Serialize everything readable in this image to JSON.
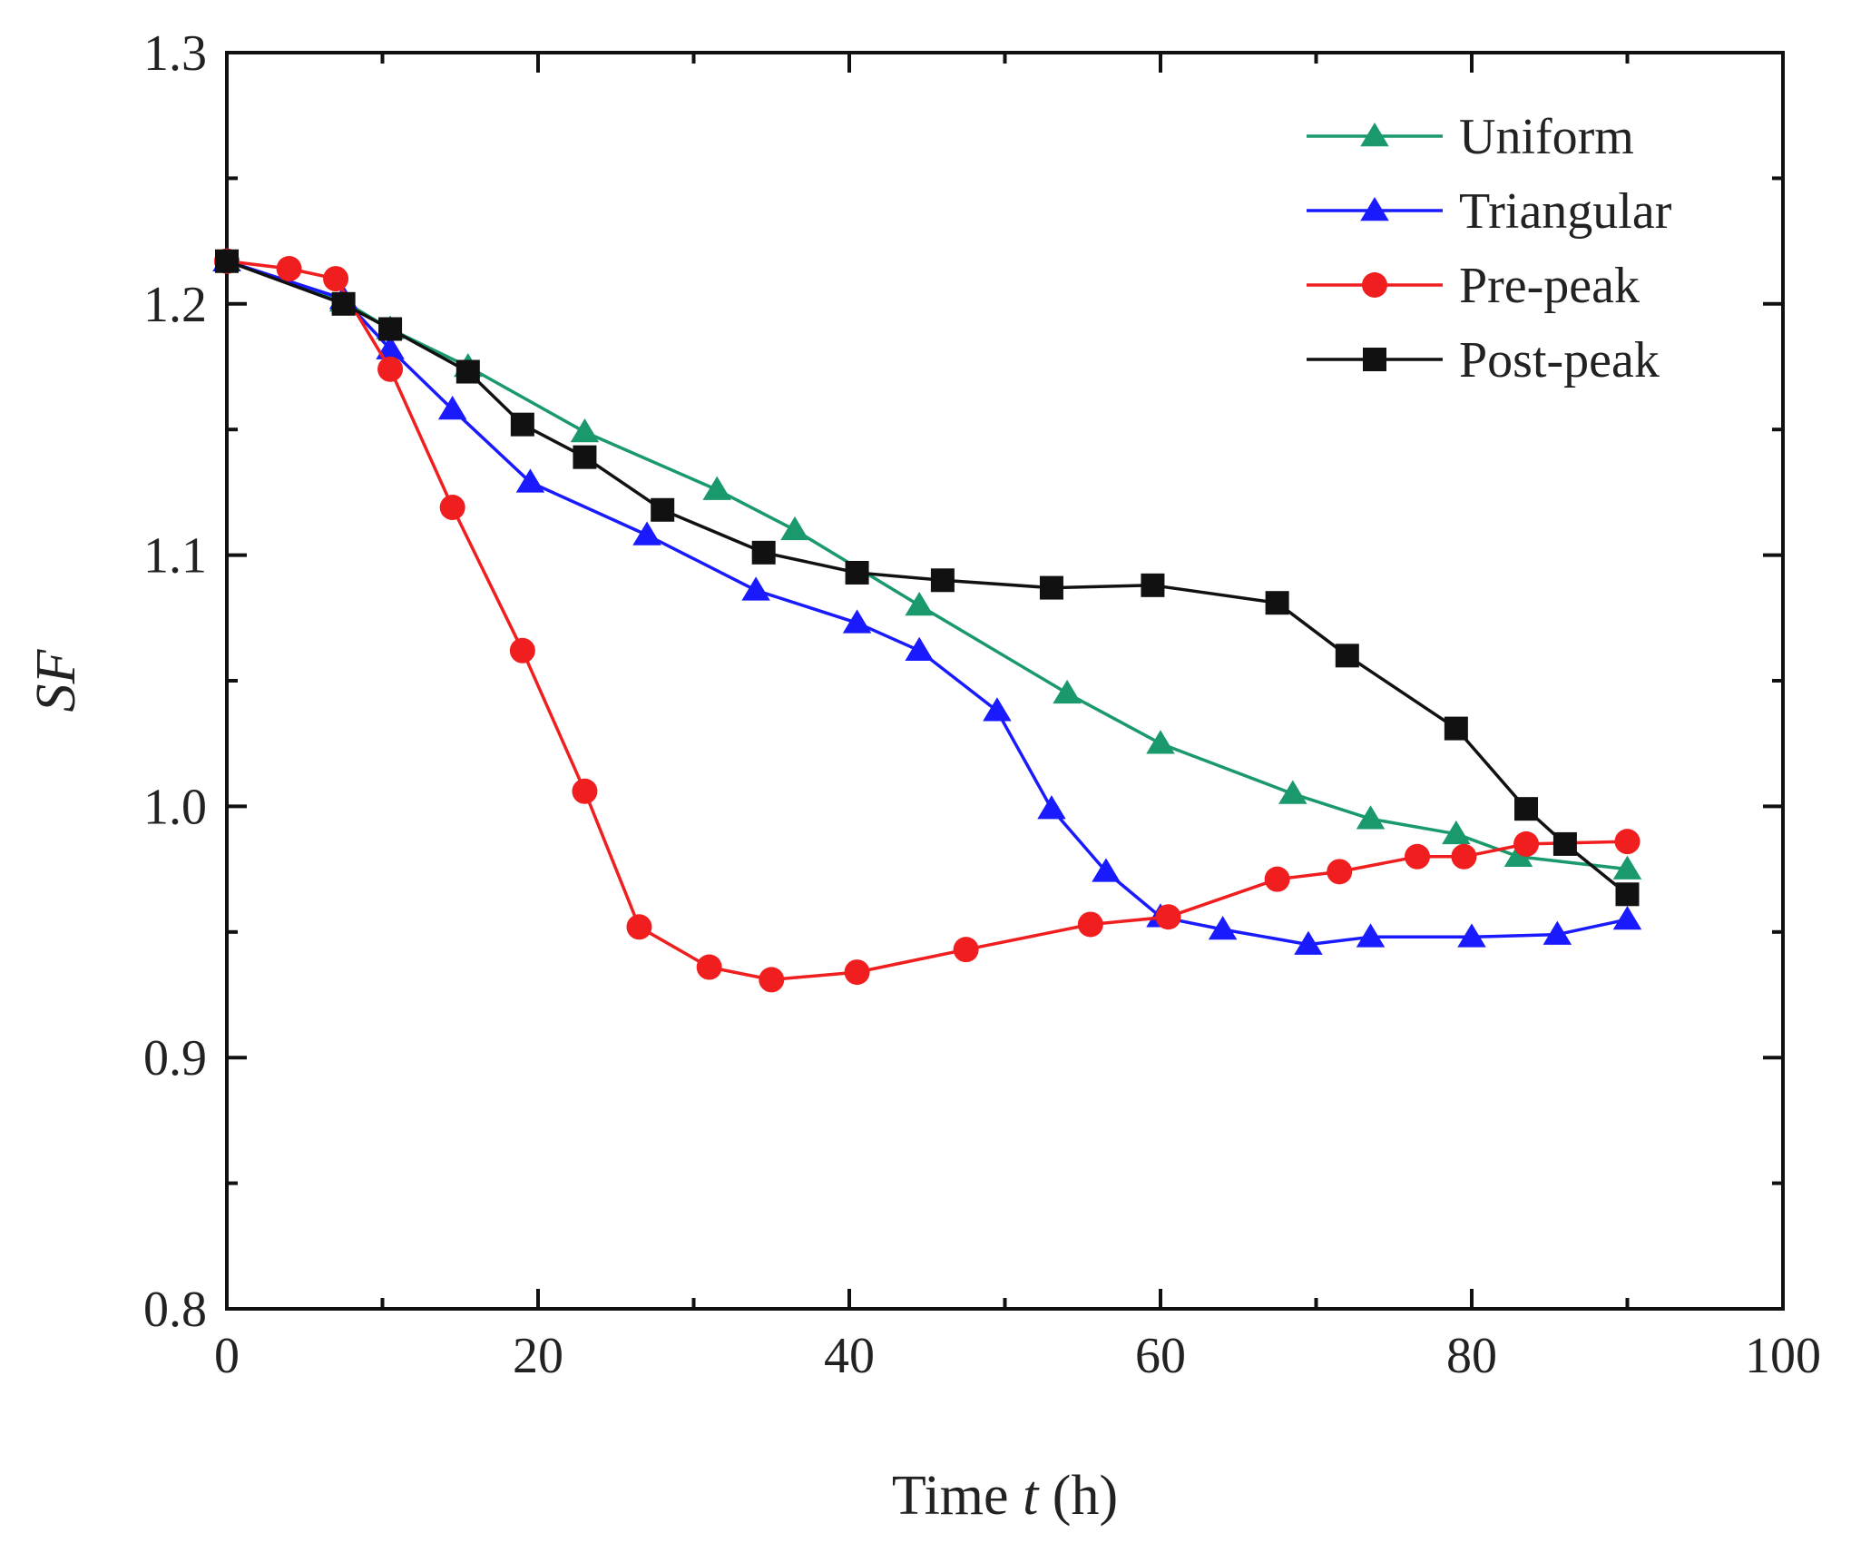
{
  "chart_data": {
    "type": "line",
    "title": "",
    "xlabel": "Time",
    "xlabel_var": "t",
    "xlabel_unit": "(h)",
    "ylabel": "SF",
    "xlim": [
      0,
      100
    ],
    "ylim": [
      0.8,
      1.3
    ],
    "x_major_ticks": [
      0,
      20,
      40,
      60,
      80,
      100
    ],
    "x_tick_labels": [
      "0",
      "20",
      "40",
      "60",
      "80",
      "100"
    ],
    "x_minor_ticks": [
      10,
      30,
      50,
      70,
      90
    ],
    "y_major_ticks": [
      0.8,
      0.9,
      1.0,
      1.1,
      1.2,
      1.3
    ],
    "y_tick_labels": [
      "0.8",
      "0.9",
      "1.0",
      "1.1",
      "1.2",
      "1.3"
    ],
    "y_minor_ticks": [
      0.85,
      0.95,
      1.05,
      1.15,
      1.25
    ],
    "grid": false,
    "legend_position": "top-right",
    "series": [
      {
        "name": "Uniform",
        "color": "#1a9a6c",
        "marker": "triangle",
        "x": [
          0,
          7.5,
          10.5,
          15.5,
          23,
          31.5,
          36.5,
          44.5,
          54,
          60,
          68.5,
          73.5,
          79,
          83,
          90
        ],
        "y": [
          1.217,
          1.201,
          1.19,
          1.175,
          1.149,
          1.126,
          1.11,
          1.08,
          1.045,
          1.025,
          1.005,
          0.995,
          0.989,
          0.98,
          0.975
        ]
      },
      {
        "name": "Triangular",
        "color": "#1a1aff",
        "marker": "triangle",
        "x": [
          0,
          7.5,
          10.5,
          14.5,
          19.5,
          27,
          34,
          40.5,
          44.5,
          49.5,
          53,
          56.5,
          60,
          64,
          69.5,
          73.5,
          80,
          85.5,
          90
        ],
        "y": [
          1.217,
          1.202,
          1.182,
          1.158,
          1.129,
          1.108,
          1.086,
          1.073,
          1.062,
          1.038,
          0.999,
          0.974,
          0.956,
          0.951,
          0.945,
          0.948,
          0.948,
          0.949,
          0.955
        ]
      },
      {
        "name": "Pre-peak",
        "color": "#f01e1e",
        "marker": "circle",
        "x": [
          0,
          4,
          7,
          10.5,
          14.5,
          19,
          23,
          26.5,
          31,
          35,
          40.5,
          47.5,
          55.5,
          60.5,
          67.5,
          71.5,
          76.5,
          79.5,
          83.5,
          90
        ],
        "y": [
          1.217,
          1.214,
          1.21,
          1.174,
          1.119,
          1.062,
          1.006,
          0.952,
          0.936,
          0.931,
          0.934,
          0.943,
          0.953,
          0.956,
          0.971,
          0.974,
          0.98,
          0.98,
          0.985,
          0.986
        ]
      },
      {
        "name": "Post-peak",
        "color": "#111111",
        "marker": "square",
        "x": [
          0,
          7.5,
          10.5,
          15.5,
          19,
          23,
          28,
          34.5,
          40.5,
          46,
          53,
          59.5,
          67.5,
          72,
          79,
          83.5,
          86,
          90
        ],
        "y": [
          1.217,
          1.2,
          1.19,
          1.173,
          1.152,
          1.139,
          1.118,
          1.101,
          1.093,
          1.09,
          1.087,
          1.088,
          1.081,
          1.06,
          1.031,
          0.999,
          0.985,
          0.965
        ]
      }
    ]
  }
}
